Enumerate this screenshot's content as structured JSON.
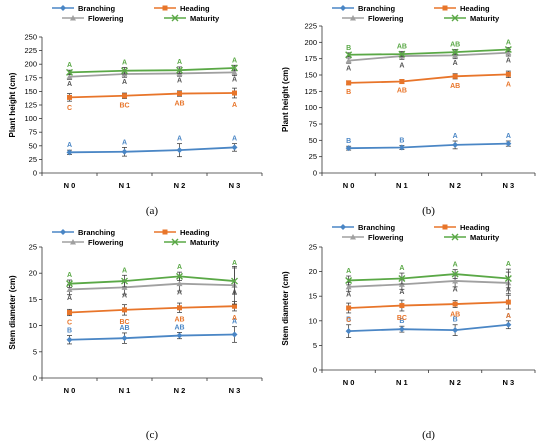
{
  "colors": {
    "Branching": "#4a86c5",
    "Heading": "#e8752a",
    "Flowering": "#a0a0a0",
    "Maturity": "#5aa846"
  },
  "chart_data": [
    {
      "type": "line",
      "panel": "(a)",
      "categories": [
        "N 0",
        "N 1",
        "N 2",
        "N 3"
      ],
      "ylabel": "Plant height (cm)",
      "ylim": [
        0,
        250
      ],
      "yticks": [
        0,
        25,
        50,
        75,
        100,
        125,
        150,
        175,
        200,
        225,
        250
      ],
      "legend": [
        "Branching",
        "Heading",
        "Flowering",
        "Maturity"
      ],
      "series": [
        {
          "name": "Branching",
          "values": [
            38,
            39,
            42,
            47
          ],
          "errors": [
            4,
            8,
            12,
            7
          ],
          "letters": [
            "A",
            "A",
            "A",
            "A"
          ]
        },
        {
          "name": "Heading",
          "values": [
            139,
            142,
            146,
            147
          ],
          "errors": [
            7,
            5,
            5,
            9
          ],
          "letters": [
            "C",
            "BC",
            "AB",
            "A"
          ]
        },
        {
          "name": "Flowering",
          "values": [
            177,
            182,
            183,
            185
          ],
          "errors": [
            5,
            6,
            5,
            6
          ],
          "letters": [
            "A",
            "A",
            "A",
            "A"
          ]
        },
        {
          "name": "Maturity",
          "values": [
            185,
            188,
            189,
            193
          ],
          "errors": [
            4,
            6,
            6,
            5
          ],
          "letters": [
            "A",
            "A",
            "A",
            "A"
          ]
        }
      ]
    },
    {
      "type": "line",
      "panel": "(b)",
      "categories": [
        "N 0",
        "N 1",
        "N 2",
        "N 3"
      ],
      "ylabel": "Plant height (cm)",
      "ylim": [
        0,
        225
      ],
      "yticks": [
        0,
        25,
        50,
        75,
        100,
        125,
        150,
        175,
        200,
        225
      ],
      "legend": [
        "Branching",
        "Heading",
        "Flowering",
        "Maturity"
      ],
      "series": [
        {
          "name": "Branching",
          "values": [
            38,
            39,
            43,
            45
          ],
          "errors": [
            3,
            3,
            6,
            4
          ],
          "letters": [
            "B",
            "B",
            "A",
            "A"
          ]
        },
        {
          "name": "Heading",
          "values": [
            138,
            140,
            148,
            151
          ],
          "errors": [
            3,
            3,
            4,
            5
          ],
          "letters": [
            "B",
            "AB",
            "AB",
            "A"
          ]
        },
        {
          "name": "Flowering",
          "values": [
            172,
            179,
            180,
            184
          ],
          "errors": [
            4,
            5,
            5,
            5
          ],
          "letters": [
            "A",
            "A",
            "A",
            "A"
          ]
        },
        {
          "name": "Maturity",
          "values": [
            181,
            182,
            185,
            189
          ],
          "errors": [
            3,
            4,
            4,
            3
          ],
          "letters": [
            "B",
            "AB",
            "AB",
            "A"
          ]
        }
      ]
    },
    {
      "type": "line",
      "panel": "(c)",
      "categories": [
        "N 0",
        "N 1",
        "N 2",
        "N 3"
      ],
      "ylabel": "Stem diameter (cm)",
      "ylim": [
        0,
        25
      ],
      "yticks": [
        0,
        5,
        10,
        15,
        20,
        25
      ],
      "legend": [
        "Branching",
        "Heading",
        "Flowering",
        "Maturity"
      ],
      "series": [
        {
          "name": "Branching",
          "values": [
            7.3,
            7.6,
            8.1,
            8.3
          ],
          "errors": [
            0.8,
            1.0,
            0.6,
            1.5
          ],
          "letters": [
            "B",
            "AB",
            "AB",
            "A"
          ]
        },
        {
          "name": "Heading",
          "values": [
            12.5,
            13.0,
            13.4,
            13.7
          ],
          "errors": [
            0.6,
            1.0,
            0.9,
            0.9
          ],
          "letters": [
            "C",
            "BC",
            "AB",
            "A"
          ]
        },
        {
          "name": "Flowering",
          "values": [
            16.9,
            17.3,
            18.0,
            17.7
          ],
          "errors": [
            1.0,
            1.3,
            1.4,
            3.6
          ],
          "letters": [
            "A",
            "A",
            "A",
            "A"
          ]
        },
        {
          "name": "Maturity",
          "values": [
            18.0,
            18.5,
            19.4,
            18.5
          ],
          "errors": [
            0.7,
            1.1,
            0.8,
            2.5
          ],
          "letters": [
            "A",
            "A",
            "A",
            "A"
          ]
        }
      ]
    },
    {
      "type": "line",
      "panel": "(d)",
      "categories": [
        "N 0",
        "N 1",
        "N 2",
        "N 3"
      ],
      "ylabel": "Stem diameter (cm)",
      "ylim": [
        0,
        25
      ],
      "yticks": [
        0,
        5,
        10,
        15,
        20,
        25
      ],
      "legend": [
        "Branching",
        "Heading",
        "Flowering",
        "Maturity"
      ],
      "series": [
        {
          "name": "Branching",
          "values": [
            7.9,
            8.3,
            8.1,
            9.2
          ],
          "errors": [
            1.3,
            0.6,
            1.1,
            0.8
          ],
          "letters": [
            "B",
            "B",
            "B",
            "A"
          ]
        },
        {
          "name": "Heading",
          "values": [
            12.6,
            13.1,
            13.4,
            13.8
          ],
          "errors": [
            1.0,
            1.1,
            0.7,
            1.4
          ],
          "letters": [
            "C",
            "BC",
            "AB",
            "A"
          ]
        },
        {
          "name": "Flowering",
          "values": [
            16.9,
            17.4,
            18.1,
            17.7
          ],
          "errors": [
            0.9,
            1.0,
            1.2,
            2.2
          ],
          "letters": [
            "A",
            "A",
            "A",
            "A"
          ]
        },
        {
          "name": "Maturity",
          "values": [
            18.2,
            18.6,
            19.5,
            18.6
          ],
          "errors": [
            0.9,
            1.1,
            0.9,
            1.9
          ],
          "letters": [
            "A",
            "A",
            "A",
            "A"
          ]
        }
      ]
    }
  ]
}
